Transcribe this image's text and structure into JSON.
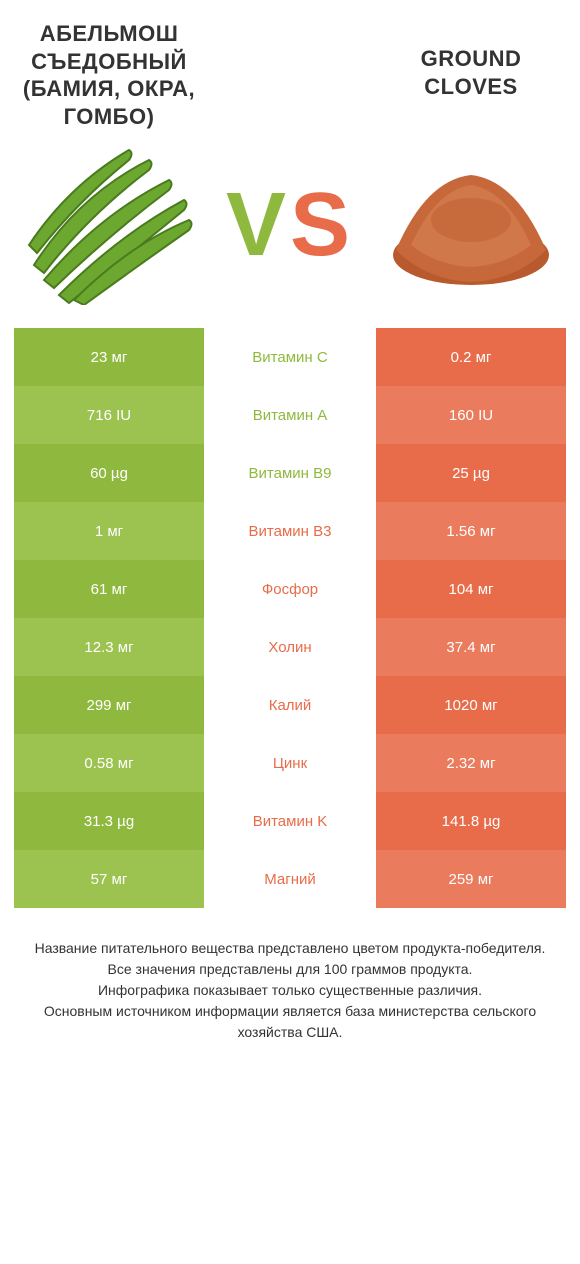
{
  "colors": {
    "left_base": "#8fb93e",
    "left_alt": "#9cc34f",
    "right_base": "#e86c4a",
    "right_alt": "#ea7b5c",
    "left_text": "#ffffff",
    "right_text": "#ffffff",
    "mid_bg": "#ffffff",
    "title_color": "#333333"
  },
  "left": {
    "title": "АБЕЛЬМОШ СЪЕДОБНЫЙ (БАМИЯ, ОКРА, ГОМБО)"
  },
  "right": {
    "title": "GROUND CLOVES"
  },
  "vs": {
    "v": "V",
    "s": "S"
  },
  "rows": [
    {
      "left": "23 мг",
      "mid": "Витамин С",
      "right": "0.2 мг",
      "winner": "left"
    },
    {
      "left": "716 IU",
      "mid": "Витамин A",
      "right": "160 IU",
      "winner": "left"
    },
    {
      "left": "60 µg",
      "mid": "Витамин B9",
      "right": "25 µg",
      "winner": "left"
    },
    {
      "left": "1 мг",
      "mid": "Витамин B3",
      "right": "1.56 мг",
      "winner": "right"
    },
    {
      "left": "61 мг",
      "mid": "Фосфор",
      "right": "104 мг",
      "winner": "right"
    },
    {
      "left": "12.3 мг",
      "mid": "Холин",
      "right": "37.4 мг",
      "winner": "right"
    },
    {
      "left": "299 мг",
      "mid": "Калий",
      "right": "1020 мг",
      "winner": "right"
    },
    {
      "left": "0.58 мг",
      "mid": "Цинк",
      "right": "2.32 мг",
      "winner": "right"
    },
    {
      "left": "31.3 µg",
      "mid": "Витамин K",
      "right": "141.8 µg",
      "winner": "right"
    },
    {
      "left": "57 мг",
      "mid": "Магний",
      "right": "259 мг",
      "winner": "right"
    }
  ],
  "footer_lines": [
    "Название питательного вещества представлено цветом продукта-победителя.",
    "Все значения представлены для 100 граммов продукта.",
    "Инфографика показывает только существенные различия.",
    "Основным источником информации является база министерства сельского хозяйства США."
  ]
}
